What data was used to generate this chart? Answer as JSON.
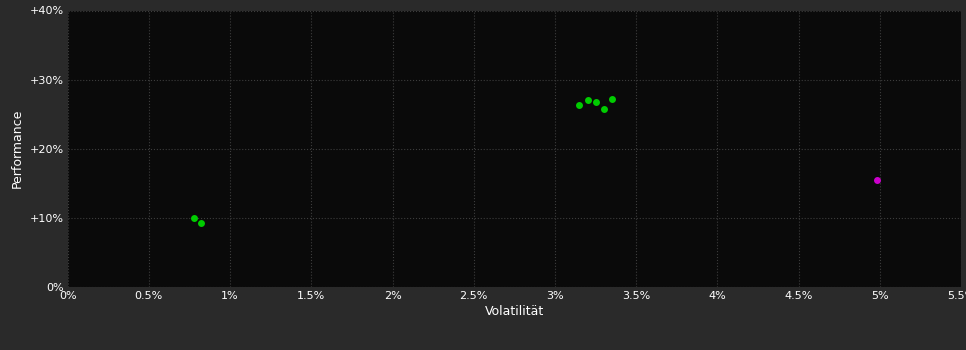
{
  "background_color": "#2a2a2a",
  "plot_bg_color": "#0a0a0a",
  "grid_color": "#3a3a3a",
  "text_color": "#ffffff",
  "xlabel": "Volatilität",
  "ylabel": "Performance",
  "xlim": [
    0,
    0.055
  ],
  "ylim": [
    0,
    0.4
  ],
  "xticks": [
    0.0,
    0.005,
    0.01,
    0.015,
    0.02,
    0.025,
    0.03,
    0.035,
    0.04,
    0.045,
    0.05,
    0.055
  ],
  "yticks": [
    0.0,
    0.1,
    0.2,
    0.3,
    0.4
  ],
  "green_points": [
    [
      0.0078,
      0.1
    ],
    [
      0.0082,
      0.092
    ],
    [
      0.0315,
      0.263
    ],
    [
      0.032,
      0.27
    ],
    [
      0.0325,
      0.268
    ],
    [
      0.033,
      0.258
    ],
    [
      0.0335,
      0.272
    ]
  ],
  "magenta_points": [
    [
      0.0498,
      0.155
    ]
  ],
  "green_color": "#00cc00",
  "magenta_color": "#cc00cc",
  "marker_size": 5
}
